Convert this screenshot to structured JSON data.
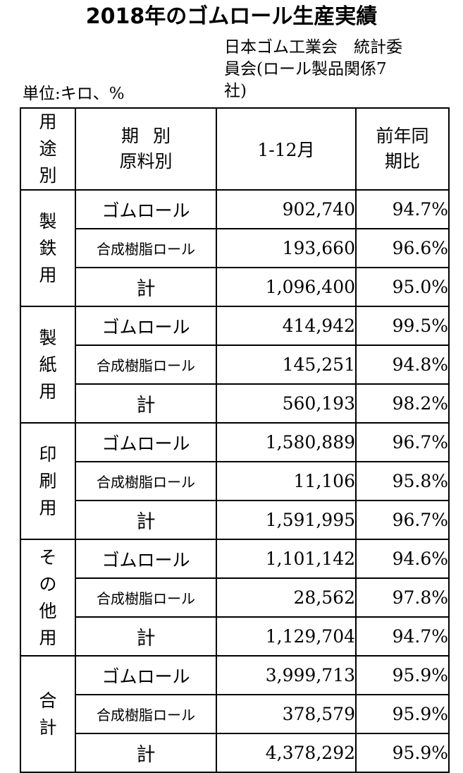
{
  "title": "2018年のゴムロール生産実績",
  "source": {
    "line1": "日本ゴム工業会　統計委",
    "line2": "員会(ロール製品関係7",
    "line3": "社)"
  },
  "unit": "単位:キロ、%",
  "header": {
    "use": "用途別",
    "period_line1": "期別",
    "period_line2": "原料別",
    "month": "1-12月",
    "ratio_line1": "前年同",
    "ratio_line2": "期比"
  },
  "groups": [
    {
      "use": "製鉄用",
      "rows": [
        {
          "material": "ゴムロール",
          "value": "902,740",
          "ratio": "94.7%"
        },
        {
          "material": "合成樹脂ロール",
          "value": "193,660",
          "ratio": "96.6%"
        },
        {
          "material": "計",
          "value": "1,096,400",
          "ratio": "95.0%"
        }
      ]
    },
    {
      "use": "製紙用",
      "rows": [
        {
          "material": "ゴムロール",
          "value": "414,942",
          "ratio": "99.5%"
        },
        {
          "material": "合成樹脂ロール",
          "value": "145,251",
          "ratio": "94.8%"
        },
        {
          "material": "計",
          "value": "560,193",
          "ratio": "98.2%"
        }
      ]
    },
    {
      "use": "印刷用",
      "rows": [
        {
          "material": "ゴムロール",
          "value": "1,580,889",
          "ratio": "96.7%"
        },
        {
          "material": "合成樹脂ロール",
          "value": "11,106",
          "ratio": "95.8%"
        },
        {
          "material": "計",
          "value": "1,591,995",
          "ratio": "96.7%"
        }
      ]
    },
    {
      "use": "その他用",
      "rows": [
        {
          "material": "ゴムロール",
          "value": "1,101,142",
          "ratio": "94.6%"
        },
        {
          "material": "合成樹脂ロール",
          "value": "28,562",
          "ratio": "97.8%"
        },
        {
          "material": "計",
          "value": "1,129,704",
          "ratio": "94.7%"
        }
      ]
    },
    {
      "use": "合計",
      "rows": [
        {
          "material": "ゴムロール",
          "value": "3,999,713",
          "ratio": "95.9%"
        },
        {
          "material": "合成樹脂ロール",
          "value": "378,579",
          "ratio": "95.9%"
        },
        {
          "material": "計",
          "value": "4,378,292",
          "ratio": "95.9%"
        }
      ]
    }
  ]
}
